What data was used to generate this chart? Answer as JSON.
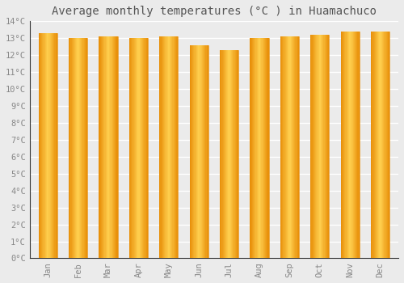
{
  "title": "Average monthly temperatures (°C ) in Huamachuco",
  "months": [
    "Jan",
    "Feb",
    "Mar",
    "Apr",
    "May",
    "Jun",
    "Jul",
    "Aug",
    "Sep",
    "Oct",
    "Nov",
    "Dec"
  ],
  "values": [
    13.3,
    13.0,
    13.1,
    13.0,
    13.1,
    12.6,
    12.3,
    13.0,
    13.1,
    13.2,
    13.4,
    13.4
  ],
  "ylim": [
    0,
    14
  ],
  "yticks": [
    0,
    1,
    2,
    3,
    4,
    5,
    6,
    7,
    8,
    9,
    10,
    11,
    12,
    13,
    14
  ],
  "bar_color_left": "#E8900A",
  "bar_color_center": "#FFD050",
  "bar_color_right": "#E8900A",
  "background_color": "#ebebeb",
  "plot_bg_color": "#ebebeb",
  "grid_color": "#ffffff",
  "spine_color": "#333333",
  "tick_color": "#888888",
  "title_color": "#555555",
  "title_fontsize": 10,
  "tick_fontsize": 7.5,
  "bar_width": 0.62
}
